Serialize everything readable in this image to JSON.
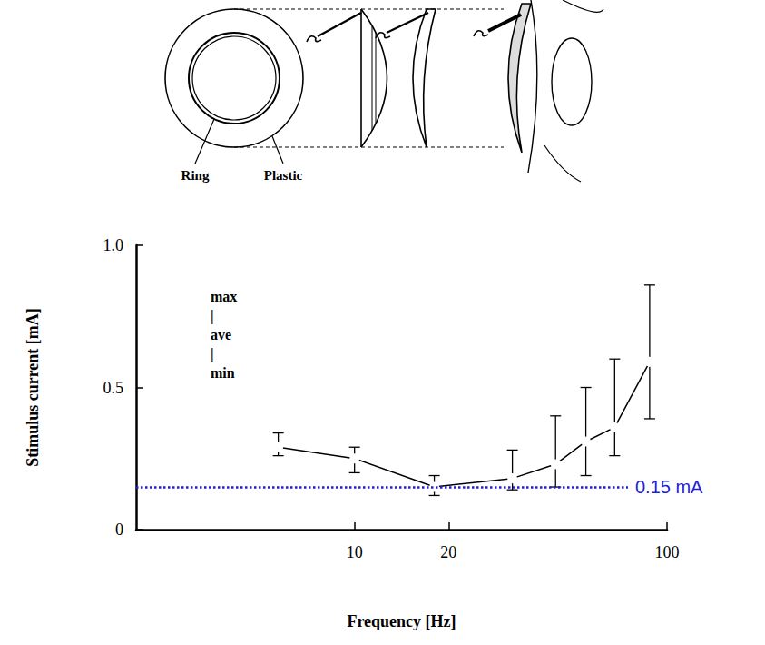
{
  "chart_data": {
    "type": "line",
    "xlabel": "Frequency [Hz]",
    "ylabel": "Stimulus current [mA]",
    "x": [
      5.7,
      10,
      18,
      32,
      44,
      55,
      68,
      88
    ],
    "values": [
      0.29,
      0.25,
      0.15,
      0.18,
      0.23,
      0.31,
      0.36,
      0.59
    ],
    "error_min": [
      0.26,
      0.2,
      0.12,
      0.14,
      0.15,
      0.19,
      0.26,
      0.39
    ],
    "error_max": [
      0.34,
      0.29,
      0.19,
      0.28,
      0.4,
      0.5,
      0.6,
      0.86
    ],
    "color": "#000000",
    "marker": "open_circle",
    "log": "x",
    "xlim": [
      2,
      100
    ],
    "xticks": [
      10,
      20,
      100
    ],
    "ylim": [
      0,
      1
    ],
    "yticks": [
      0,
      0.5,
      {
        "value": 1,
        "label": "1.0"
      }
    ],
    "grid": false,
    "annotations": [
      {
        "text": "0.15 mA",
        "y": 0.15,
        "x_end": 75,
        "color": "#1f1fd6",
        "line_style": "dotted"
      },
      {
        "text": [
          "max",
          "|",
          "ave",
          "|",
          "min"
        ]
      }
    ]
  },
  "diagram": {
    "labels": [
      "Ring",
      "Plastic"
    ]
  }
}
